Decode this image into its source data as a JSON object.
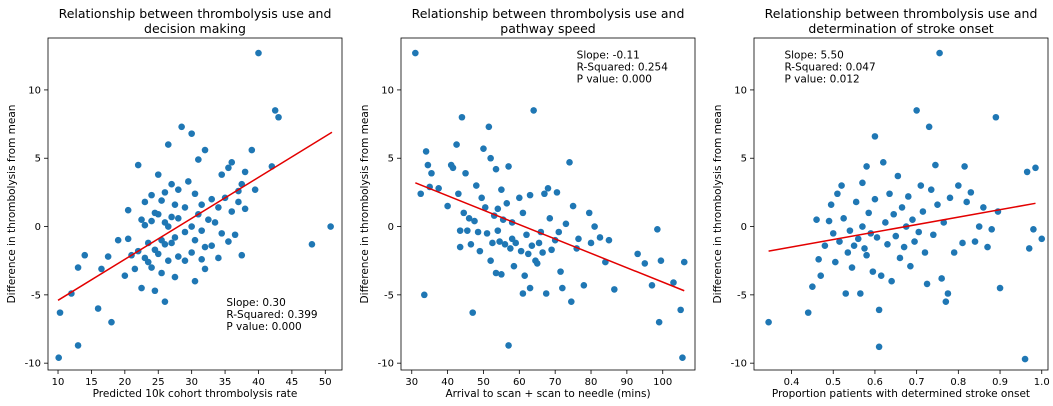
{
  "colors": {
    "points": "#1f77b4",
    "fit_line": "#e30000",
    "text": "#000000"
  },
  "chart_data": [
    {
      "type": "scatter",
      "title": [
        "Relationship between thrombolysis use and",
        "decision making"
      ],
      "xlabel": "Predicted 10k cohort thrombolysis rate",
      "ylabel": "Difference in thrombolysis from mean",
      "xlim": [
        8.5,
        52.5
      ],
      "ylim": [
        -10.5,
        13.8
      ],
      "xticks": [
        10,
        15,
        20,
        25,
        30,
        35,
        40,
        45,
        50
      ],
      "yticks": [
        -10,
        -5,
        0,
        5,
        10
      ],
      "annotation": [
        "Slope: 0.30",
        "R-Squared: 0.399",
        "P value: 0.000"
      ],
      "annotation_at": [
        35.2,
        -5.8
      ],
      "fit_line": {
        "x": [
          10,
          51
        ],
        "y": [
          -5.4,
          6.9
        ]
      },
      "points": [
        [
          10.1,
          -9.6
        ],
        [
          10.3,
          -6.3
        ],
        [
          12.0,
          -4.9
        ],
        [
          13.0,
          -8.7
        ],
        [
          13.0,
          -3.0
        ],
        [
          14.0,
          -2.1
        ],
        [
          16.0,
          -6.0
        ],
        [
          16.5,
          -3.1
        ],
        [
          17.5,
          -2.2
        ],
        [
          18.0,
          -7.0
        ],
        [
          19.0,
          -1.0
        ],
        [
          20.0,
          -3.6
        ],
        [
          20.5,
          -0.9
        ],
        [
          20.5,
          1.2
        ],
        [
          21.0,
          -2.1
        ],
        [
          21.5,
          -3.1
        ],
        [
          22.0,
          -1.8
        ],
        [
          22.0,
          4.5
        ],
        [
          22.5,
          -4.5
        ],
        [
          22.5,
          0.5
        ],
        [
          23.0,
          -2.3
        ],
        [
          23.0,
          0.1
        ],
        [
          23.0,
          1.8
        ],
        [
          23.5,
          -2.6
        ],
        [
          23.5,
          -1.2
        ],
        [
          24.0,
          -3.0
        ],
        [
          24.0,
          0.4
        ],
        [
          24.0,
          2.3
        ],
        [
          24.5,
          -4.7
        ],
        [
          24.5,
          -1.7
        ],
        [
          24.5,
          1.0
        ],
        [
          25.0,
          -2.0
        ],
        [
          25.0,
          0.9
        ],
        [
          25.0,
          3.8
        ],
        [
          25.5,
          -3.4
        ],
        [
          25.5,
          -1.0
        ],
        [
          25.5,
          1.9
        ],
        [
          26.0,
          -5.5
        ],
        [
          26.0,
          -1.3
        ],
        [
          26.0,
          0.3
        ],
        [
          26.0,
          2.5
        ],
        [
          26.5,
          -2.5
        ],
        [
          26.5,
          0.0
        ],
        [
          26.5,
          6.0
        ],
        [
          27.0,
          -1.2
        ],
        [
          27.0,
          0.7
        ],
        [
          27.0,
          3.1
        ],
        [
          27.5,
          -3.7
        ],
        [
          27.5,
          -0.8
        ],
        [
          27.5,
          1.6
        ],
        [
          28.0,
          -2.2
        ],
        [
          28.0,
          0.6
        ],
        [
          28.0,
          2.7
        ],
        [
          28.5,
          7.3
        ],
        [
          29.0,
          -2.5
        ],
        [
          29.0,
          -0.4
        ],
        [
          29.0,
          1.4
        ],
        [
          29.5,
          3.3
        ],
        [
          30.0,
          -1.9
        ],
        [
          30.0,
          0.0
        ],
        [
          30.0,
          6.8
        ],
        [
          30.5,
          -4.0
        ],
        [
          30.5,
          -1.0
        ],
        [
          30.5,
          2.4
        ],
        [
          31.0,
          0.9
        ],
        [
          31.0,
          4.9
        ],
        [
          31.5,
          -2.4
        ],
        [
          31.5,
          -0.3
        ],
        [
          31.5,
          1.6
        ],
        [
          32.0,
          -3.1
        ],
        [
          32.0,
          -1.5
        ],
        [
          32.0,
          5.6
        ],
        [
          32.5,
          0.5
        ],
        [
          33.0,
          -1.4
        ],
        [
          33.0,
          2.0
        ],
        [
          33.5,
          0.3
        ],
        [
          34.0,
          -2.3
        ],
        [
          34.0,
          1.4
        ],
        [
          34.5,
          -0.5
        ],
        [
          34.5,
          3.8
        ],
        [
          35.0,
          2.1
        ],
        [
          35.5,
          -1.1
        ],
        [
          35.5,
          4.3
        ],
        [
          36.0,
          1.1
        ],
        [
          36.0,
          4.7
        ],
        [
          36.5,
          -0.6
        ],
        [
          37.0,
          2.6
        ],
        [
          37.0,
          1.8
        ],
        [
          37.5,
          -2.1
        ],
        [
          37.5,
          3.1
        ],
        [
          38.0,
          1.3
        ],
        [
          38.0,
          4.0
        ],
        [
          39.0,
          5.6
        ],
        [
          39.5,
          2.7
        ],
        [
          40.0,
          12.7
        ],
        [
          42.0,
          4.4
        ],
        [
          42.5,
          8.5
        ],
        [
          43.0,
          8.0
        ],
        [
          48.0,
          -1.3
        ],
        [
          50.8,
          0.0
        ]
      ]
    },
    {
      "type": "scatter",
      "title": [
        "Relationship between thrombolysis use and",
        "pathway speed"
      ],
      "xlabel": "Arrival to scan + scan to needle (mins)",
      "ylabel": "Difference in thrombolysis from mean",
      "xlim": [
        27,
        109
      ],
      "ylim": [
        -10.5,
        13.8
      ],
      "xticks": [
        30,
        40,
        50,
        60,
        70,
        80,
        90,
        100
      ],
      "yticks": [
        -10,
        -5,
        0,
        5,
        10
      ],
      "annotation": [
        "Slope: -0.11",
        "R-Squared: 0.254",
        "P value: 0.000"
      ],
      "annotation_at": [
        76.0,
        12.3
      ],
      "fit_line": {
        "x": [
          31,
          106
        ],
        "y": [
          3.2,
          -4.7
        ]
      },
      "points": [
        [
          31.0,
          12.7
        ],
        [
          32.5,
          2.4
        ],
        [
          33.5,
          -5.0
        ],
        [
          34.0,
          5.5
        ],
        [
          34.5,
          4.5
        ],
        [
          35.0,
          2.9
        ],
        [
          35.5,
          3.9
        ],
        [
          37.5,
          2.8
        ],
        [
          40.0,
          1.5
        ],
        [
          41.0,
          4.5
        ],
        [
          41.5,
          4.3
        ],
        [
          42.5,
          6.0
        ],
        [
          43.0,
          2.4
        ],
        [
          43.5,
          -1.5
        ],
        [
          43.5,
          -0.3
        ],
        [
          44.0,
          8.0
        ],
        [
          44.5,
          1.0
        ],
        [
          45.0,
          3.9
        ],
        [
          45.5,
          -0.3
        ],
        [
          46.0,
          0.6
        ],
        [
          46.5,
          -1.3
        ],
        [
          47.0,
          -6.3
        ],
        [
          47.5,
          0.4
        ],
        [
          48.0,
          3.0
        ],
        [
          48.5,
          -0.4
        ],
        [
          49.0,
          -1.8
        ],
        [
          49.5,
          2.1
        ],
        [
          50.0,
          5.7
        ],
        [
          50.5,
          1.4
        ],
        [
          51.0,
          -0.5
        ],
        [
          51.5,
          7.3
        ],
        [
          52.0,
          5.0
        ],
        [
          52.0,
          -2.5
        ],
        [
          52.5,
          -1.2
        ],
        [
          53.0,
          0.8
        ],
        [
          53.5,
          -3.4
        ],
        [
          53.5,
          4.2
        ],
        [
          54.0,
          1.3
        ],
        [
          54.0,
          -0.3
        ],
        [
          54.5,
          -1.1
        ],
        [
          55.0,
          2.7
        ],
        [
          55.0,
          -3.5
        ],
        [
          55.5,
          0.5
        ],
        [
          56.0,
          -1.3
        ],
        [
          56.5,
          1.7
        ],
        [
          57.0,
          -8.7
        ],
        [
          57.0,
          4.4
        ],
        [
          57.5,
          -1.6
        ],
        [
          58.0,
          -0.9
        ],
        [
          58.0,
          0.3
        ],
        [
          58.5,
          -2.9
        ],
        [
          59.0,
          -1.2
        ],
        [
          60.0,
          2.1
        ],
        [
          60.5,
          -1.8
        ],
        [
          61.0,
          -4.9
        ],
        [
          61.0,
          1.0
        ],
        [
          61.5,
          -3.6
        ],
        [
          62.0,
          -0.6
        ],
        [
          62.5,
          -2.0
        ],
        [
          63.0,
          -4.5
        ],
        [
          63.0,
          2.3
        ],
        [
          63.5,
          -1.4
        ],
        [
          64.0,
          8.5
        ],
        [
          64.5,
          -2.5
        ],
        [
          65.0,
          -2.7
        ],
        [
          65.5,
          -1.2
        ],
        [
          66.0,
          -0.4
        ],
        [
          66.5,
          -1.9
        ],
        [
          67.0,
          2.4
        ],
        [
          67.5,
          -4.9
        ],
        [
          68.0,
          2.8
        ],
        [
          68.5,
          0.6
        ],
        [
          69.0,
          -1.7
        ],
        [
          70.0,
          -1.0
        ],
        [
          70.5,
          2.5
        ],
        [
          71.0,
          -0.4
        ],
        [
          71.5,
          -3.3
        ],
        [
          72.0,
          -4.5
        ],
        [
          73.0,
          0.2
        ],
        [
          74.0,
          4.7
        ],
        [
          74.5,
          -5.5
        ],
        [
          75.0,
          1.5
        ],
        [
          76.0,
          -1.6
        ],
        [
          76.5,
          -0.9
        ],
        [
          78.0,
          -4.3
        ],
        [
          79.5,
          1.0
        ],
        [
          80.0,
          -1.2
        ],
        [
          81.0,
          0.0
        ],
        [
          82.5,
          -0.8
        ],
        [
          84.0,
          -2.6
        ],
        [
          85.0,
          -1.0
        ],
        [
          86.5,
          -4.6
        ],
        [
          93.0,
          -2.0
        ],
        [
          95.0,
          -2.7
        ],
        [
          97.0,
          -4.3
        ],
        [
          98.5,
          -0.2
        ],
        [
          99.0,
          -7.0
        ],
        [
          99.5,
          -2.5
        ],
        [
          103.0,
          -4.1
        ],
        [
          105.0,
          -6.1
        ],
        [
          105.5,
          -9.6
        ],
        [
          106.0,
          -2.6
        ]
      ]
    },
    {
      "type": "scatter",
      "title": [
        "Relationship between thrombolysis use and",
        "determination of stroke onset"
      ],
      "xlabel": "Proportion patients with determined stroke onset",
      "ylabel": "Difference in thrombolysis from mean",
      "xlim": [
        0.31,
        1.015
      ],
      "ylim": [
        -10.5,
        13.8
      ],
      "xticks": [
        0.4,
        0.5,
        0.6,
        0.7,
        0.8,
        0.9,
        1.0
      ],
      "xticklabels": [
        "0.4",
        "0.5",
        "0.6",
        "0.7",
        "0.8",
        "0.9",
        "1.0"
      ],
      "yticks": [
        -10,
        -5,
        0,
        5,
        10
      ],
      "annotation": [
        "Slope: 5.50",
        "R-Squared: 0.047",
        "P value: 0.012"
      ],
      "annotation_at": [
        0.383,
        12.3
      ],
      "fit_line": {
        "x": [
          0.345,
          0.985
        ],
        "y": [
          -1.8,
          1.7
        ]
      },
      "points": [
        [
          0.345,
          -7.0
        ],
        [
          0.44,
          -6.3
        ],
        [
          0.45,
          -4.4
        ],
        [
          0.46,
          0.5
        ],
        [
          0.465,
          -2.4
        ],
        [
          0.47,
          -3.6
        ],
        [
          0.48,
          -1.4
        ],
        [
          0.49,
          0.4
        ],
        [
          0.495,
          1.6
        ],
        [
          0.5,
          -0.5
        ],
        [
          0.505,
          -2.6
        ],
        [
          0.51,
          2.4
        ],
        [
          0.515,
          -1.1
        ],
        [
          0.52,
          3.0
        ],
        [
          0.525,
          0.6
        ],
        [
          0.53,
          -4.9
        ],
        [
          0.535,
          -1.9
        ],
        [
          0.54,
          -0.3
        ],
        [
          0.545,
          -3.0
        ],
        [
          0.55,
          -1.4
        ],
        [
          0.555,
          1.8
        ],
        [
          0.56,
          -0.9
        ],
        [
          0.565,
          -4.9
        ],
        [
          0.57,
          3.2
        ],
        [
          0.57,
          0.0
        ],
        [
          0.575,
          -1.6
        ],
        [
          0.58,
          4.4
        ],
        [
          0.58,
          -2.1
        ],
        [
          0.585,
          1.0
        ],
        [
          0.59,
          -0.5
        ],
        [
          0.595,
          -3.3
        ],
        [
          0.6,
          6.6
        ],
        [
          0.6,
          2.0
        ],
        [
          0.605,
          -0.8
        ],
        [
          0.61,
          -6.1
        ],
        [
          0.61,
          -8.8
        ],
        [
          0.615,
          -3.6
        ],
        [
          0.62,
          4.7
        ],
        [
          0.625,
          0.3
        ],
        [
          0.63,
          -1.3
        ],
        [
          0.635,
          2.4
        ],
        [
          0.64,
          -4.0
        ],
        [
          0.645,
          0.9
        ],
        [
          0.65,
          -0.7
        ],
        [
          0.655,
          3.7
        ],
        [
          0.66,
          -2.3
        ],
        [
          0.665,
          1.4
        ],
        [
          0.67,
          -1.5
        ],
        [
          0.675,
          0.0
        ],
        [
          0.68,
          2.2
        ],
        [
          0.685,
          -2.9
        ],
        [
          0.69,
          0.5
        ],
        [
          0.695,
          -1.1
        ],
        [
          0.7,
          8.5
        ],
        [
          0.705,
          -0.4
        ],
        [
          0.71,
          3.0
        ],
        [
          0.715,
          1.1
        ],
        [
          0.72,
          -1.9
        ],
        [
          0.725,
          -4.2
        ],
        [
          0.73,
          7.3
        ],
        [
          0.735,
          2.7
        ],
        [
          0.74,
          -0.6
        ],
        [
          0.745,
          4.5
        ],
        [
          0.75,
          1.6
        ],
        [
          0.755,
          12.7
        ],
        [
          0.76,
          -3.8
        ],
        [
          0.765,
          0.3
        ],
        [
          0.77,
          -5.5
        ],
        [
          0.775,
          -4.9
        ],
        [
          0.78,
          2.1
        ],
        [
          0.79,
          -1.9
        ],
        [
          0.8,
          3.0
        ],
        [
          0.81,
          -1.2
        ],
        [
          0.815,
          4.4
        ],
        [
          0.82,
          1.8
        ],
        [
          0.83,
          2.5
        ],
        [
          0.84,
          -1.1
        ],
        [
          0.85,
          0.0
        ],
        [
          0.86,
          1.4
        ],
        [
          0.87,
          -1.5
        ],
        [
          0.88,
          -0.2
        ],
        [
          0.89,
          8.0
        ],
        [
          0.895,
          1.1
        ],
        [
          0.9,
          -4.5
        ],
        [
          0.96,
          -9.7
        ],
        [
          0.965,
          4.0
        ],
        [
          0.97,
          -1.6
        ],
        [
          0.98,
          -0.2
        ],
        [
          0.985,
          4.3
        ],
        [
          1.0,
          -0.9
        ]
      ]
    }
  ]
}
